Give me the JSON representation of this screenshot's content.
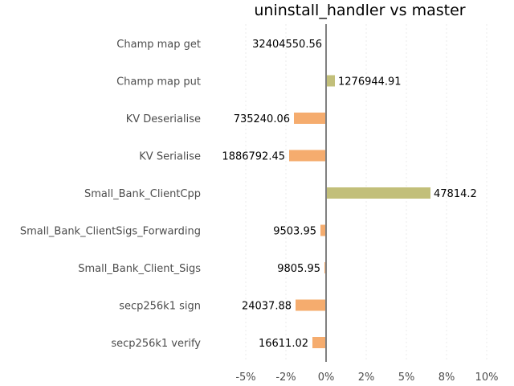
{
  "chart_data": {
    "type": "bar",
    "orientation": "horizontal",
    "title": "uninstall_handler vs master",
    "xlabel": "",
    "ylabel": "",
    "xlim": [
      -6,
      10.5
    ],
    "xticks": [
      -5,
      -2.5,
      0,
      2.5,
      5,
      7.5,
      10
    ],
    "xtick_labels": [
      "-5%",
      "-2%",
      "0%",
      "2%",
      "5%",
      "8%",
      "10%"
    ],
    "grid": true,
    "colors": {
      "increase": "#c2bf7a",
      "decrease": "#f5ac6e",
      "zero_line": "#808080"
    },
    "categories": [
      "Champ map get",
      "Champ map put",
      "KV Deserialise",
      "KV Serialise",
      "Small_Bank_ClientCpp",
      "Small_Bank_ClientSigs_Forwarding",
      "Small_Bank_Client_Sigs",
      "secp256k1 sign",
      "secp256k1 verify"
    ],
    "values": [
      0.0,
      0.55,
      -2.0,
      -2.3,
      6.5,
      -0.35,
      -0.1,
      -1.9,
      -0.85
    ],
    "data_labels": [
      "32404550.56",
      "1276944.91",
      "735240.06",
      "1886792.45",
      "47814.2",
      "9503.95",
      "9805.95",
      "24037.88",
      "16611.02"
    ]
  }
}
